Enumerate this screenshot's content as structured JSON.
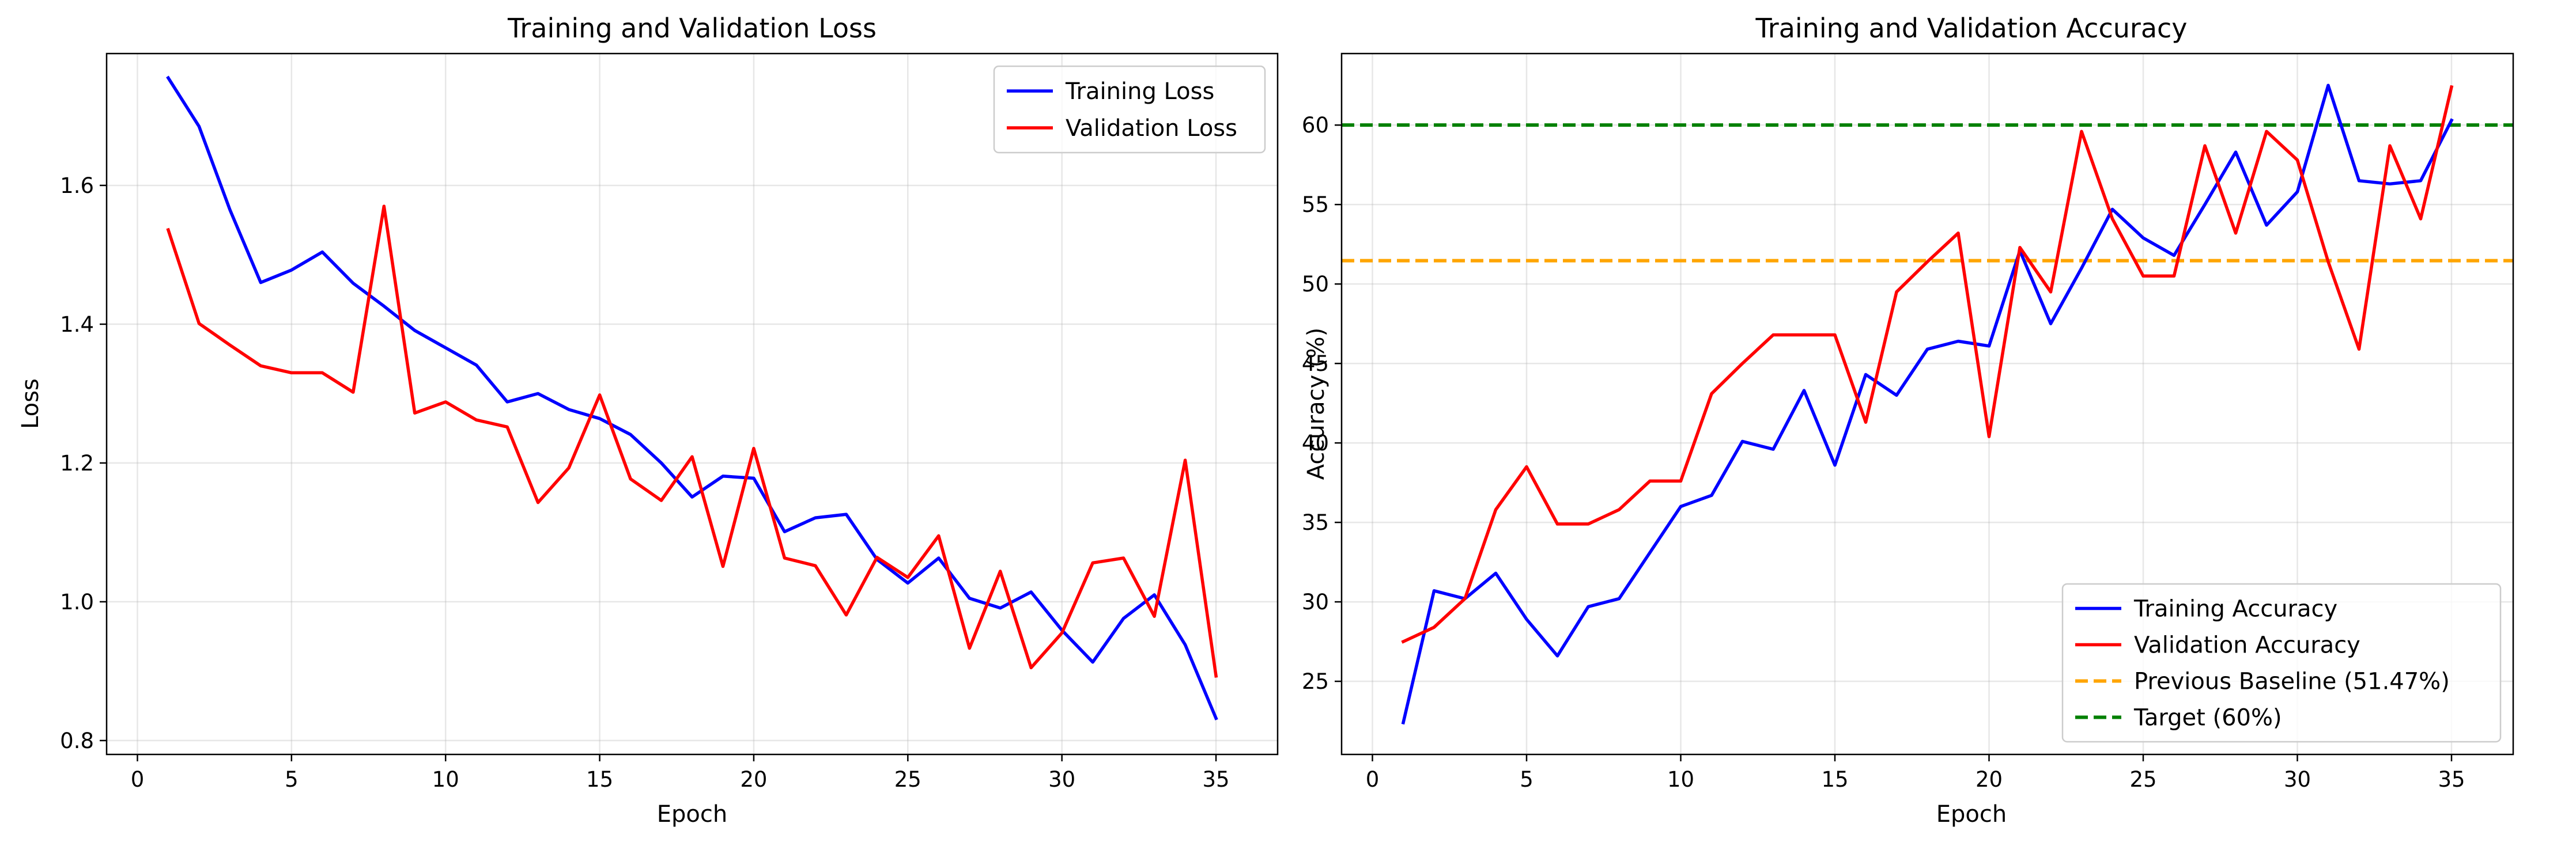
{
  "chart_data": [
    {
      "type": "line",
      "title": "Training and Validation Loss",
      "xlabel": "Epoch",
      "ylabel": "Loss",
      "xlim": [
        -1,
        37
      ],
      "ylim": [
        0.78,
        1.79
      ],
      "xticks": [
        0,
        5,
        10,
        15,
        20,
        25,
        30,
        35
      ],
      "yticks": [
        0.8,
        1.0,
        1.2,
        1.4,
        1.6
      ],
      "ytick_labels": [
        "0.8",
        "1.0",
        "1.2",
        "1.4",
        "1.6"
      ],
      "grid": true,
      "legend_position": "upper right",
      "x": [
        1,
        2,
        3,
        4,
        5,
        6,
        7,
        8,
        9,
        10,
        11,
        12,
        13,
        14,
        15,
        16,
        17,
        18,
        19,
        20,
        21,
        22,
        23,
        24,
        25,
        26,
        27,
        28,
        29,
        30,
        31,
        32,
        33,
        34,
        35
      ],
      "series": [
        {
          "name": "Training Loss",
          "color": "#0000ff",
          "values": [
            1.755,
            1.685,
            1.565,
            1.46,
            1.478,
            1.504,
            1.459,
            1.426,
            1.391,
            1.366,
            1.341,
            1.288,
            1.3,
            1.277,
            1.264,
            1.241,
            1.2,
            1.151,
            1.181,
            1.178,
            1.101,
            1.121,
            1.126,
            1.061,
            1.027,
            1.063,
            1.005,
            0.991,
            1.014,
            0.959,
            0.913,
            0.976,
            1.01,
            0.938,
            0.832
          ]
        },
        {
          "name": "Validation Loss",
          "color": "#ff0000",
          "values": [
            1.536,
            1.401,
            1.37,
            1.34,
            1.33,
            1.33,
            1.302,
            1.57,
            1.272,
            1.288,
            1.262,
            1.252,
            1.143,
            1.193,
            1.298,
            1.177,
            1.146,
            1.209,
            1.051,
            1.221,
            1.063,
            1.052,
            0.981,
            1.064,
            1.035,
            1.095,
            0.933,
            1.044,
            0.905,
            0.955,
            1.056,
            1.063,
            0.979,
            1.204,
            0.893
          ]
        }
      ]
    },
    {
      "type": "line",
      "title": "Training and Validation Accuracy",
      "xlabel": "Epoch",
      "ylabel": "Accuracy (%)",
      "xlim": [
        -1,
        37
      ],
      "ylim": [
        20.4,
        64.5
      ],
      "xticks": [
        0,
        5,
        10,
        15,
        20,
        25,
        30,
        35
      ],
      "yticks": [
        25,
        30,
        35,
        40,
        45,
        50,
        55,
        60
      ],
      "ytick_labels": [
        "25",
        "30",
        "35",
        "40",
        "45",
        "50",
        "55",
        "60"
      ],
      "grid": true,
      "legend_position": "lower right",
      "x": [
        1,
        2,
        3,
        4,
        5,
        6,
        7,
        8,
        9,
        10,
        11,
        12,
        13,
        14,
        15,
        16,
        17,
        18,
        19,
        20,
        21,
        22,
        23,
        24,
        25,
        26,
        27,
        28,
        29,
        30,
        31,
        32,
        33,
        34,
        35
      ],
      "series": [
        {
          "name": "Training Accuracy",
          "color": "#0000ff",
          "values": [
            22.4,
            30.7,
            30.2,
            31.8,
            28.9,
            26.6,
            29.7,
            30.2,
            33.1,
            36.0,
            36.7,
            40.1,
            39.6,
            43.3,
            38.6,
            44.3,
            43.0,
            45.9,
            46.4,
            46.1,
            52.1,
            47.5,
            51.0,
            54.7,
            52.9,
            51.8,
            55.0,
            58.3,
            53.7,
            55.8,
            62.5,
            56.5,
            56.3,
            56.5,
            60.3
          ]
        },
        {
          "name": "Validation Accuracy",
          "color": "#ff0000",
          "values": [
            27.5,
            28.4,
            30.2,
            35.8,
            38.5,
            34.9,
            34.9,
            35.8,
            37.6,
            37.6,
            43.1,
            45.0,
            46.8,
            46.8,
            46.8,
            41.3,
            49.5,
            51.4,
            53.2,
            40.4,
            52.3,
            49.5,
            59.6,
            54.1,
            50.5,
            50.5,
            58.7,
            53.2,
            59.6,
            57.8,
            51.4,
            45.9,
            58.7,
            54.1,
            62.4
          ]
        }
      ],
      "reference_lines": [
        {
          "name": "Previous Baseline (51.47%)",
          "y": 51.47,
          "color": "#ffa500",
          "style": "dashed"
        },
        {
          "name": "Target (60%)",
          "y": 60,
          "color": "#008000",
          "style": "dashed"
        }
      ]
    }
  ]
}
